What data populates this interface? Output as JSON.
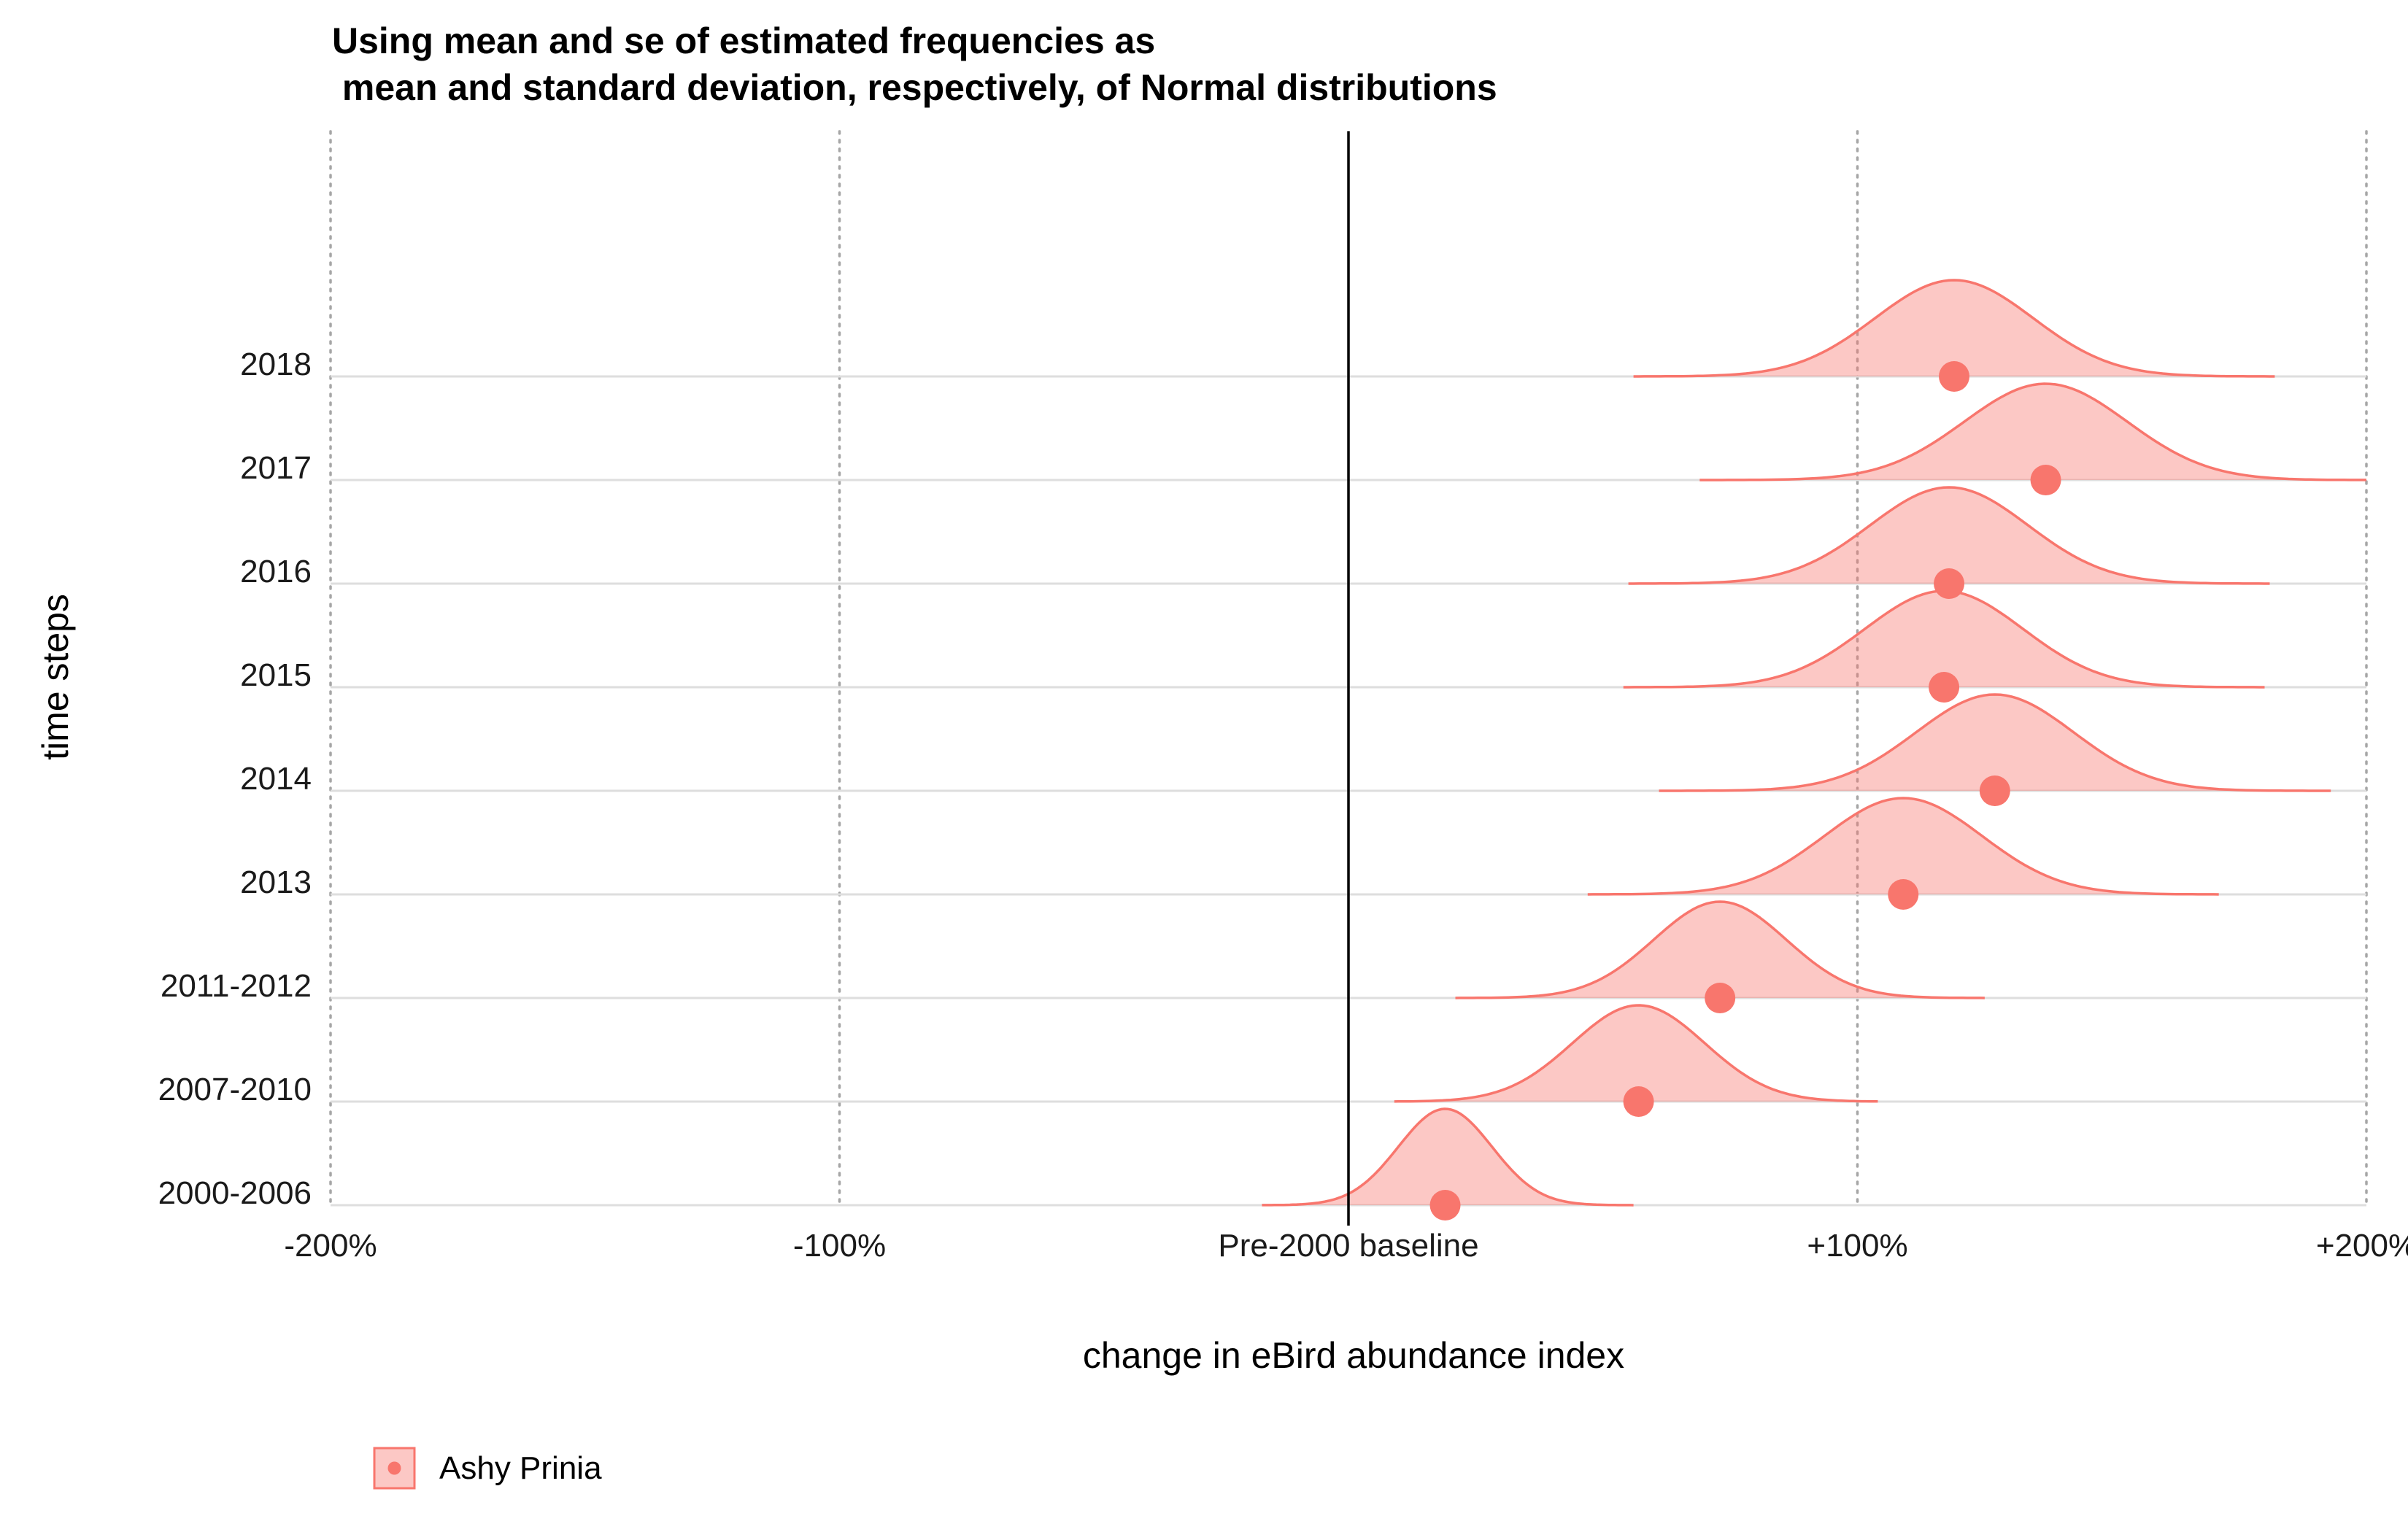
{
  "chart_data": {
    "type": "ridgeline",
    "title_line1": "Using mean and se of estimated frequencies as",
    "title_line2": " mean and standard deviation, respectively, of Normal distributions",
    "xlabel": "change in eBird abundance index",
    "ylabel": "time steps",
    "xlim": [
      -200,
      200
    ],
    "x_ticks": [
      {
        "value": -200,
        "label": "-200%"
      },
      {
        "value": -100,
        "label": "-100%"
      },
      {
        "value": 0,
        "label": "Pre-2000 baseline"
      },
      {
        "value": 100,
        "label": "+100%"
      },
      {
        "value": 200,
        "label": "+200%"
      }
    ],
    "baseline_value": 0,
    "series": [
      {
        "name": "Ashy Prinia",
        "color": "#F8766D",
        "fill": "#F8766D",
        "points": [
          {
            "label": "2000-2006",
            "mean": 19,
            "sd": 9.2,
            "min": -17,
            "max": 56
          },
          {
            "label": "2007-2010",
            "mean": 57,
            "sd": 13.0,
            "min": 9,
            "max": 104
          },
          {
            "label": "2011-2012",
            "mean": 73,
            "sd": 13.0,
            "min": 21,
            "max": 125
          },
          {
            "label": "2013",
            "mean": 109,
            "sd": 15.5,
            "min": 47,
            "max": 171
          },
          {
            "label": "2014",
            "mean": 127,
            "sd": 15.5,
            "min": 61,
            "max": 193
          },
          {
            "label": "2015",
            "mean": 117,
            "sd": 15.5,
            "min": 54,
            "max": 180
          },
          {
            "label": "2016",
            "mean": 118,
            "sd": 15.5,
            "min": 55,
            "max": 181
          },
          {
            "label": "2017",
            "mean": 137,
            "sd": 16.0,
            "min": 69,
            "max": 200
          },
          {
            "label": "2018",
            "mean": 119,
            "sd": 15.5,
            "min": 56,
            "max": 182
          }
        ]
      }
    ],
    "legend": {
      "position": "bottom-left",
      "entries": [
        "Ashy Prinia"
      ]
    },
    "grid": {
      "vertical": "dotted",
      "horizontal": "solid"
    }
  }
}
